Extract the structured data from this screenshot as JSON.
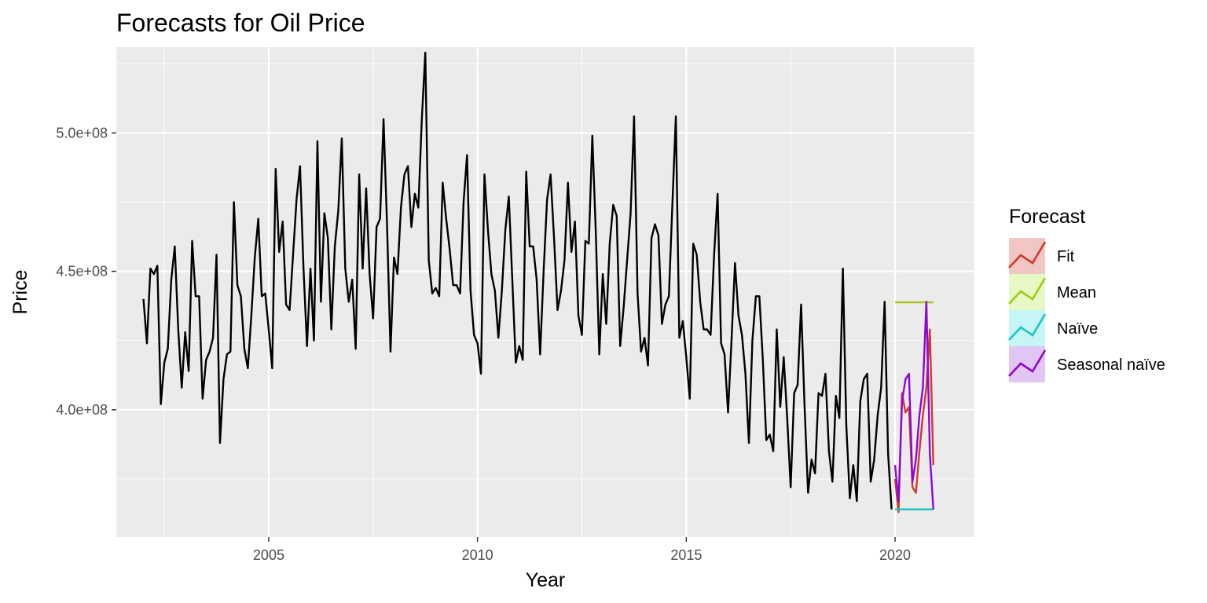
{
  "chart_data": {
    "type": "line",
    "title": "Forecasts for Oil Price",
    "xlabel": "Year",
    "ylabel": "Price",
    "xlim": [
      2001.35,
      2021.9
    ],
    "ylim": [
      354000000,
      531000000
    ],
    "x_ticks": [
      2005,
      2010,
      2015,
      2020
    ],
    "x_tick_labels": [
      "2005",
      "2010",
      "2015",
      "2020"
    ],
    "y_ticks": [
      400000000,
      450000000,
      500000000
    ],
    "y_tick_labels": [
      "4.0e+08",
      "4.5e+08",
      "5.0e+08"
    ],
    "grid": true,
    "legend_position": "right",
    "legend": {
      "title": "Forecast",
      "entries": [
        {
          "label": "Fit",
          "color": "#cd3b2f",
          "fill": "#f2c6c2"
        },
        {
          "label": "Mean",
          "color": "#a3c816",
          "fill": "#e8f8c4"
        },
        {
          "label": "Naïve",
          "color": "#1fc3c3",
          "fill": "#c6f5f5"
        },
        {
          "label": "Seasonal naïve",
          "color": "#8d07d4",
          "fill": "#e0c5f5"
        }
      ]
    },
    "history": {
      "color": "#000000",
      "start": [
        2002,
        1
      ],
      "values": [
        440,
        424,
        451,
        449,
        452,
        402,
        417,
        422,
        447,
        459,
        429,
        408,
        428,
        414,
        461,
        441,
        441,
        404,
        418,
        421,
        426,
        456,
        388,
        411,
        420,
        421,
        475,
        445,
        441,
        422,
        415,
        434,
        455,
        469,
        441,
        442,
        429,
        415,
        487,
        457,
        468,
        438,
        436,
        456,
        476,
        488,
        451,
        423,
        451,
        425,
        497,
        439,
        471,
        462,
        429,
        459,
        472,
        498,
        451,
        439,
        447,
        422,
        485,
        451,
        480,
        449,
        433,
        466,
        469,
        505,
        467,
        421,
        455,
        449,
        473,
        485,
        488,
        466,
        478,
        473,
        505,
        529,
        454,
        442,
        444,
        441,
        482,
        469,
        458,
        445,
        445,
        442,
        475,
        492,
        443,
        427,
        424,
        413,
        485,
        465,
        449,
        443,
        426,
        443,
        465,
        477,
        447,
        417,
        423,
        418,
        486,
        459,
        459,
        447,
        420,
        450,
        476,
        485,
        462,
        436,
        443,
        454,
        482,
        457,
        468,
        434,
        427,
        461,
        460,
        499,
        464,
        420,
        449,
        431,
        460,
        474,
        470,
        423,
        437,
        454,
        471,
        506,
        442,
        421,
        426,
        416,
        462,
        467,
        463,
        431,
        438,
        441,
        474,
        506,
        426,
        432,
        419,
        404,
        460,
        456,
        439,
        429,
        429,
        427,
        456,
        478,
        424,
        420,
        399,
        425,
        453,
        434,
        427,
        413,
        388,
        425,
        441,
        441,
        418,
        389,
        391,
        385,
        429,
        401,
        419,
        397,
        372,
        406,
        409,
        438,
        401,
        370,
        382,
        377,
        406,
        405,
        413,
        385,
        374,
        405,
        397,
        451,
        394,
        368,
        380,
        367,
        403,
        411,
        413,
        374,
        382,
        398,
        408,
        439,
        384,
        364
      ]
    },
    "forecasts": [
      {
        "name": "Fit",
        "color": "#cd3b2f",
        "x": [
          2020.0,
          2020.0833,
          2020.1667,
          2020.25,
          2020.3333,
          2020.4167,
          2020.5,
          2020.5833,
          2020.6667,
          2020.75,
          2020.8333,
          2020.9167
        ],
        "values": [
          375,
          363,
          406,
          399,
          401,
          372,
          370,
          385,
          398,
          408,
          429,
          380
        ]
      },
      {
        "name": "Mean",
        "color": "#a3c816",
        "x": [
          2020.0,
          2020.9167
        ],
        "values": [
          438.8,
          438.8
        ]
      },
      {
        "name": "Naïve",
        "color": "#1fc3c3",
        "x": [
          2020.0,
          2020.9167
        ],
        "values": [
          364,
          364
        ]
      },
      {
        "name": "Seasonal naïve",
        "color": "#8d07d4",
        "x": [
          2020.0,
          2020.0833,
          2020.1667,
          2020.25,
          2020.3333,
          2020.4167,
          2020.5,
          2020.5833,
          2020.6667,
          2020.75,
          2020.8333,
          2020.9167
        ],
        "values": [
          380,
          367,
          403,
          411,
          413,
          374,
          382,
          398,
          408,
          439,
          384,
          364
        ]
      }
    ]
  }
}
